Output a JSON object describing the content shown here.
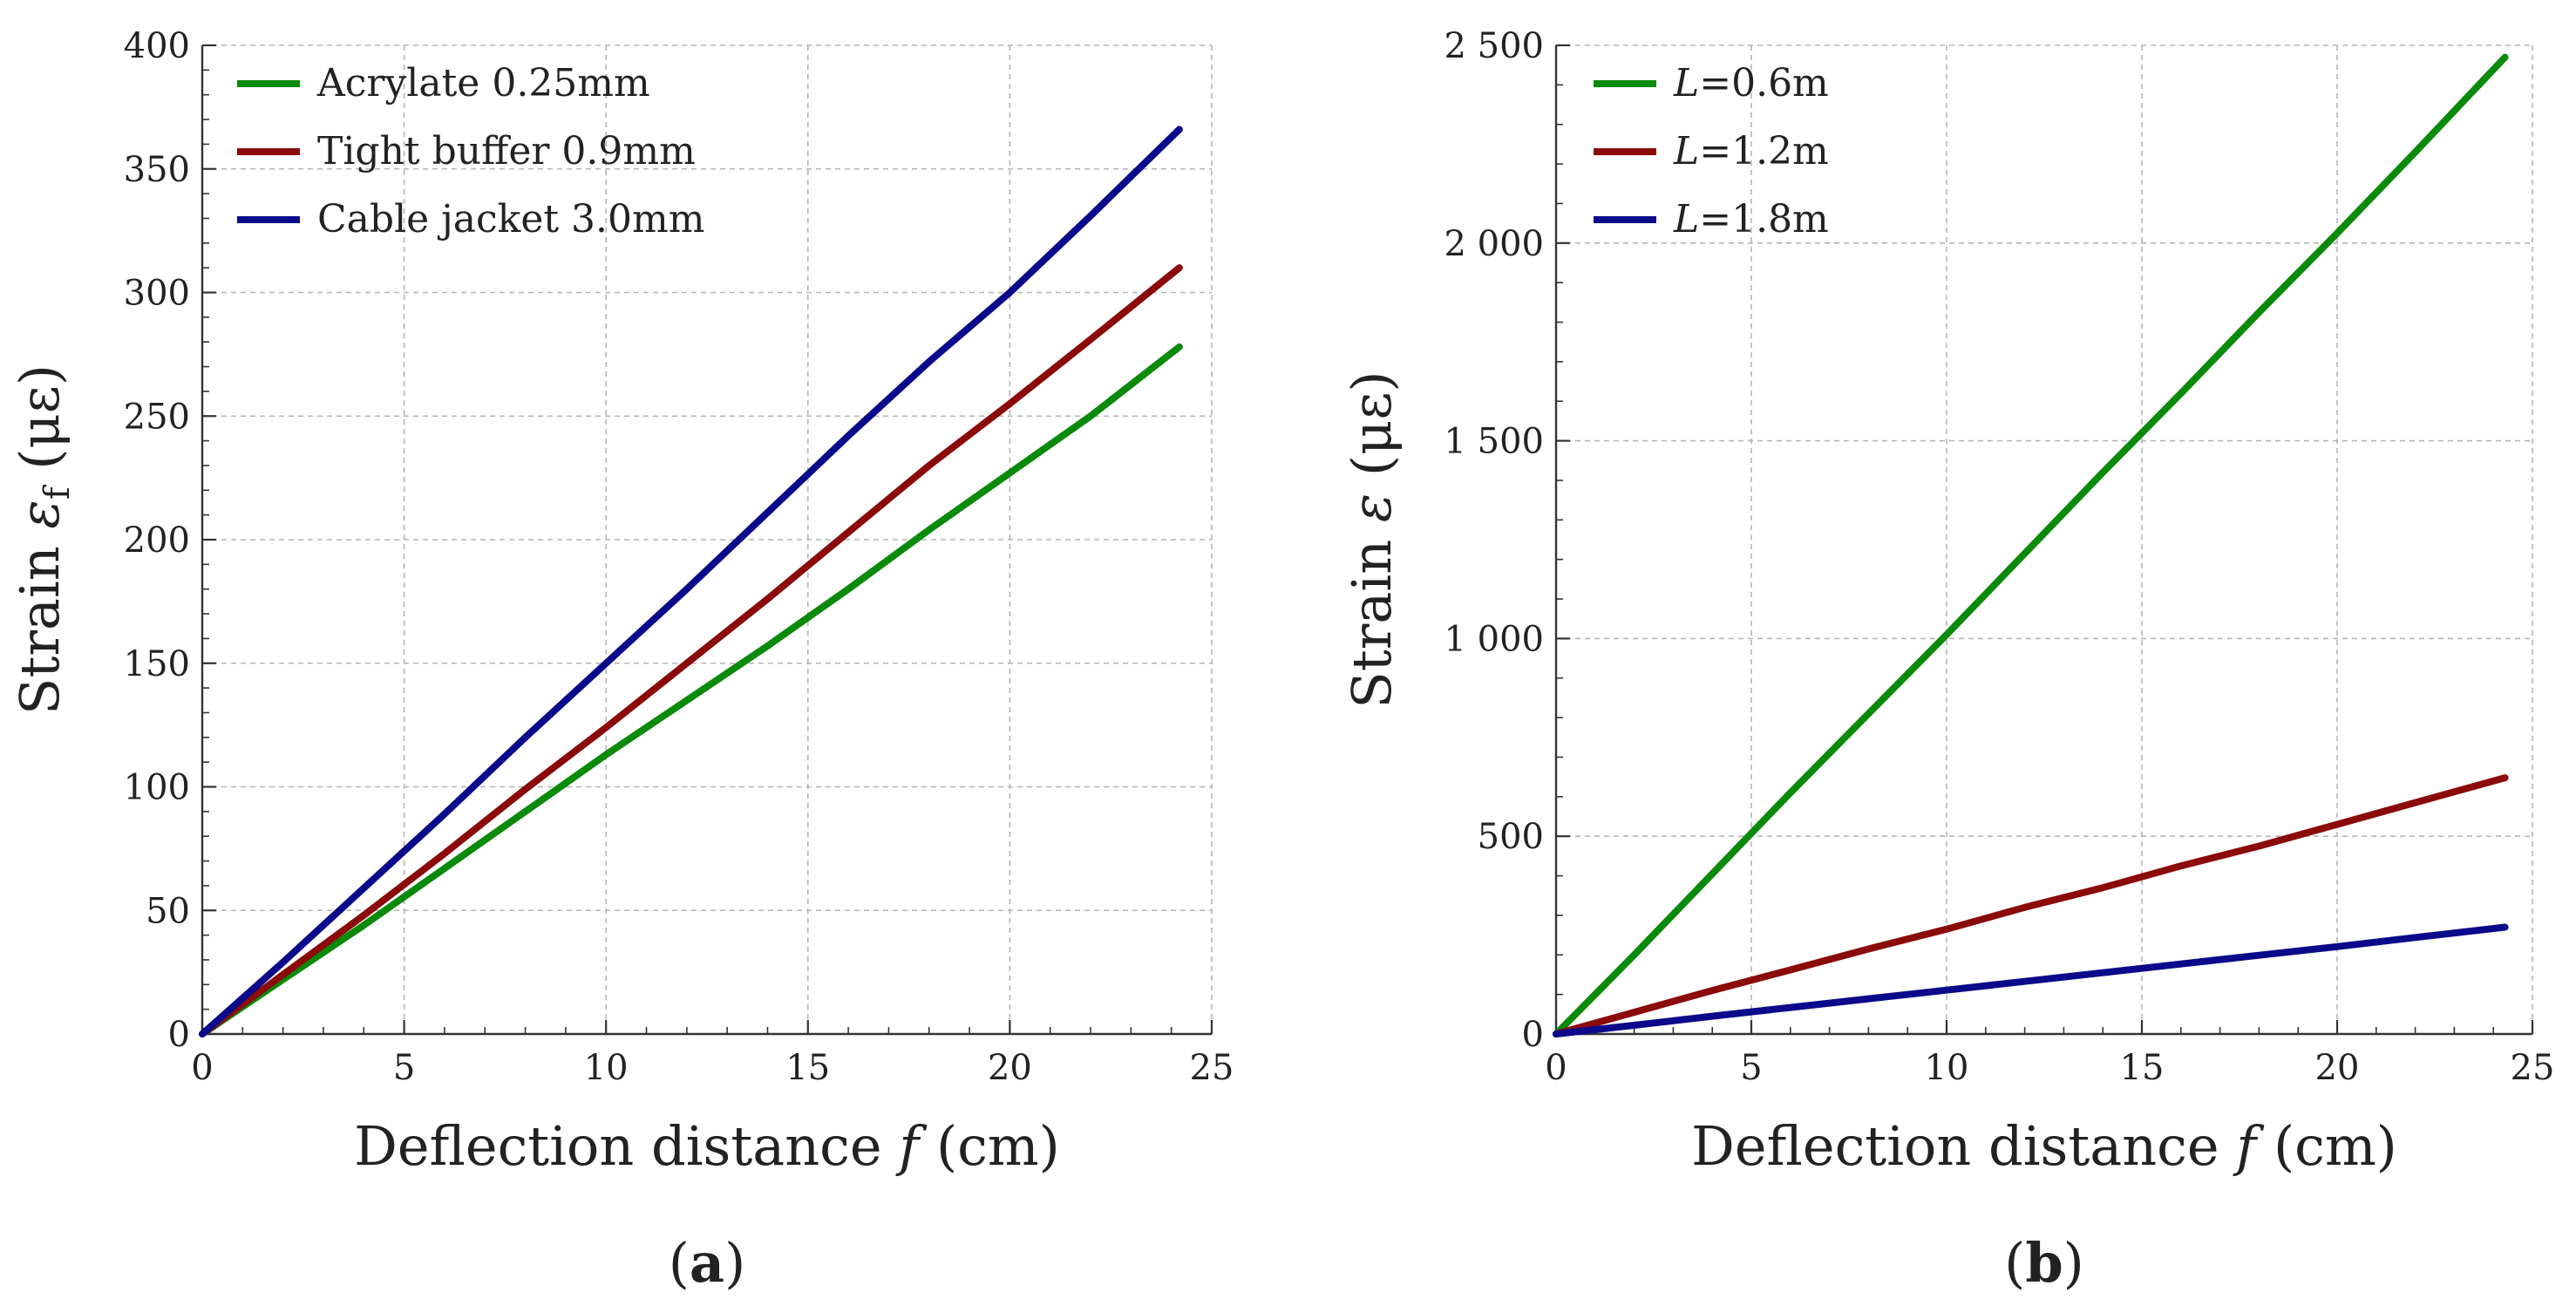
{
  "chart_data": [
    {
      "type": "line",
      "panel_label": "(a)",
      "panel_letter": "a",
      "xlabel": "Deflection distance f (cm)",
      "xlabel_parts": {
        "pre": "Deflection distance ",
        "var": "f",
        "post": " (cm)"
      },
      "ylabel": "Strain εf (με)",
      "ylabel_parts": {
        "pre": "Strain ",
        "var": "ε",
        "sub": "f",
        "post": " (με)"
      },
      "xlim": [
        0,
        25
      ],
      "ylim": [
        0,
        400
      ],
      "xticks": [
        0,
        5,
        10,
        15,
        20,
        25
      ],
      "xtick_labels": [
        "0",
        "5",
        "10",
        "15",
        "20",
        "25"
      ],
      "yticks": [
        0,
        50,
        100,
        150,
        200,
        250,
        300,
        350,
        400
      ],
      "ytick_labels": [
        "0",
        "50",
        "100",
        "150",
        "200",
        "250",
        "300",
        "350",
        "400"
      ],
      "grid": true,
      "legend_position": "top-left",
      "series": [
        {
          "name": "Acrylate 0.25mm",
          "color": "#0a8a0a",
          "x": [
            0,
            2,
            4,
            6,
            8,
            10,
            12,
            14,
            16,
            18,
            20,
            22,
            24.2
          ],
          "y": [
            0,
            22,
            44,
            67,
            90,
            113,
            135,
            157,
            180,
            204,
            227,
            250,
            278
          ]
        },
        {
          "name": "Tight buffer 0.9mm",
          "color": "#8b0a0a",
          "x": [
            0,
            2,
            4,
            6,
            8,
            10,
            12,
            14,
            16,
            18,
            20,
            22,
            24.2
          ],
          "y": [
            0,
            24,
            48,
            73,
            99,
            124,
            150,
            176,
            203,
            230,
            255,
            281,
            310
          ]
        },
        {
          "name": "Cable jacket 3.0mm",
          "color": "#0a0a8b",
          "x": [
            0,
            2,
            4,
            6,
            8,
            10,
            12,
            14,
            16,
            18,
            20,
            22,
            24.2
          ],
          "y": [
            0,
            29,
            59,
            89,
            120,
            150,
            180,
            211,
            242,
            272,
            300,
            331,
            366
          ]
        }
      ]
    },
    {
      "type": "line",
      "panel_label": "(b)",
      "panel_letter": "b",
      "xlabel": "Deflection distance f (cm)",
      "xlabel_parts": {
        "pre": "Deflection distance ",
        "var": "f",
        "post": " (cm)"
      },
      "ylabel": "Strain ε (με)",
      "ylabel_parts": {
        "pre": "Strain ",
        "var": "ε",
        "sub": "",
        "post": " (με)"
      },
      "xlim": [
        0,
        25
      ],
      "ylim": [
        0,
        2500
      ],
      "xticks": [
        0,
        5,
        10,
        15,
        20,
        25
      ],
      "xtick_labels": [
        "0",
        "5",
        "10",
        "15",
        "20",
        "25"
      ],
      "yticks": [
        0,
        500,
        1000,
        1500,
        2000,
        2500
      ],
      "ytick_labels": [
        "0",
        "500",
        "1 000",
        "1 500",
        "2 000",
        "2 500"
      ],
      "grid": true,
      "legend_position": "top-left",
      "series": [
        {
          "name": "L=0.6m",
          "name_parts": {
            "var": "L",
            "rest": "=0.6m"
          },
          "color": "#0a8a0a",
          "x": [
            0,
            2,
            4,
            6,
            8,
            10,
            12,
            14,
            16,
            18,
            20,
            22,
            24.3
          ],
          "y": [
            0,
            200,
            405,
            610,
            810,
            1010,
            1215,
            1420,
            1620,
            1825,
            2025,
            2230,
            2470
          ]
        },
        {
          "name": "L=1.2m",
          "name_parts": {
            "var": "L",
            "rest": "=1.2m"
          },
          "color": "#8b0a0a",
          "x": [
            0,
            2,
            4,
            6,
            8,
            10,
            12,
            14,
            16,
            18,
            20,
            22,
            24.3
          ],
          "y": [
            0,
            55,
            110,
            162,
            215,
            265,
            320,
            370,
            425,
            475,
            530,
            585,
            648
          ]
        },
        {
          "name": "L=1.8m",
          "name_parts": {
            "var": "L",
            "rest": "=1.8m"
          },
          "color": "#0a0a8b",
          "x": [
            0,
            2,
            4,
            6,
            8,
            10,
            12,
            14,
            16,
            18,
            20,
            22,
            24.3
          ],
          "y": [
            0,
            22,
            45,
            67,
            89,
            111,
            133,
            155,
            177,
            199,
            221,
            244,
            270
          ]
        }
      ]
    }
  ]
}
